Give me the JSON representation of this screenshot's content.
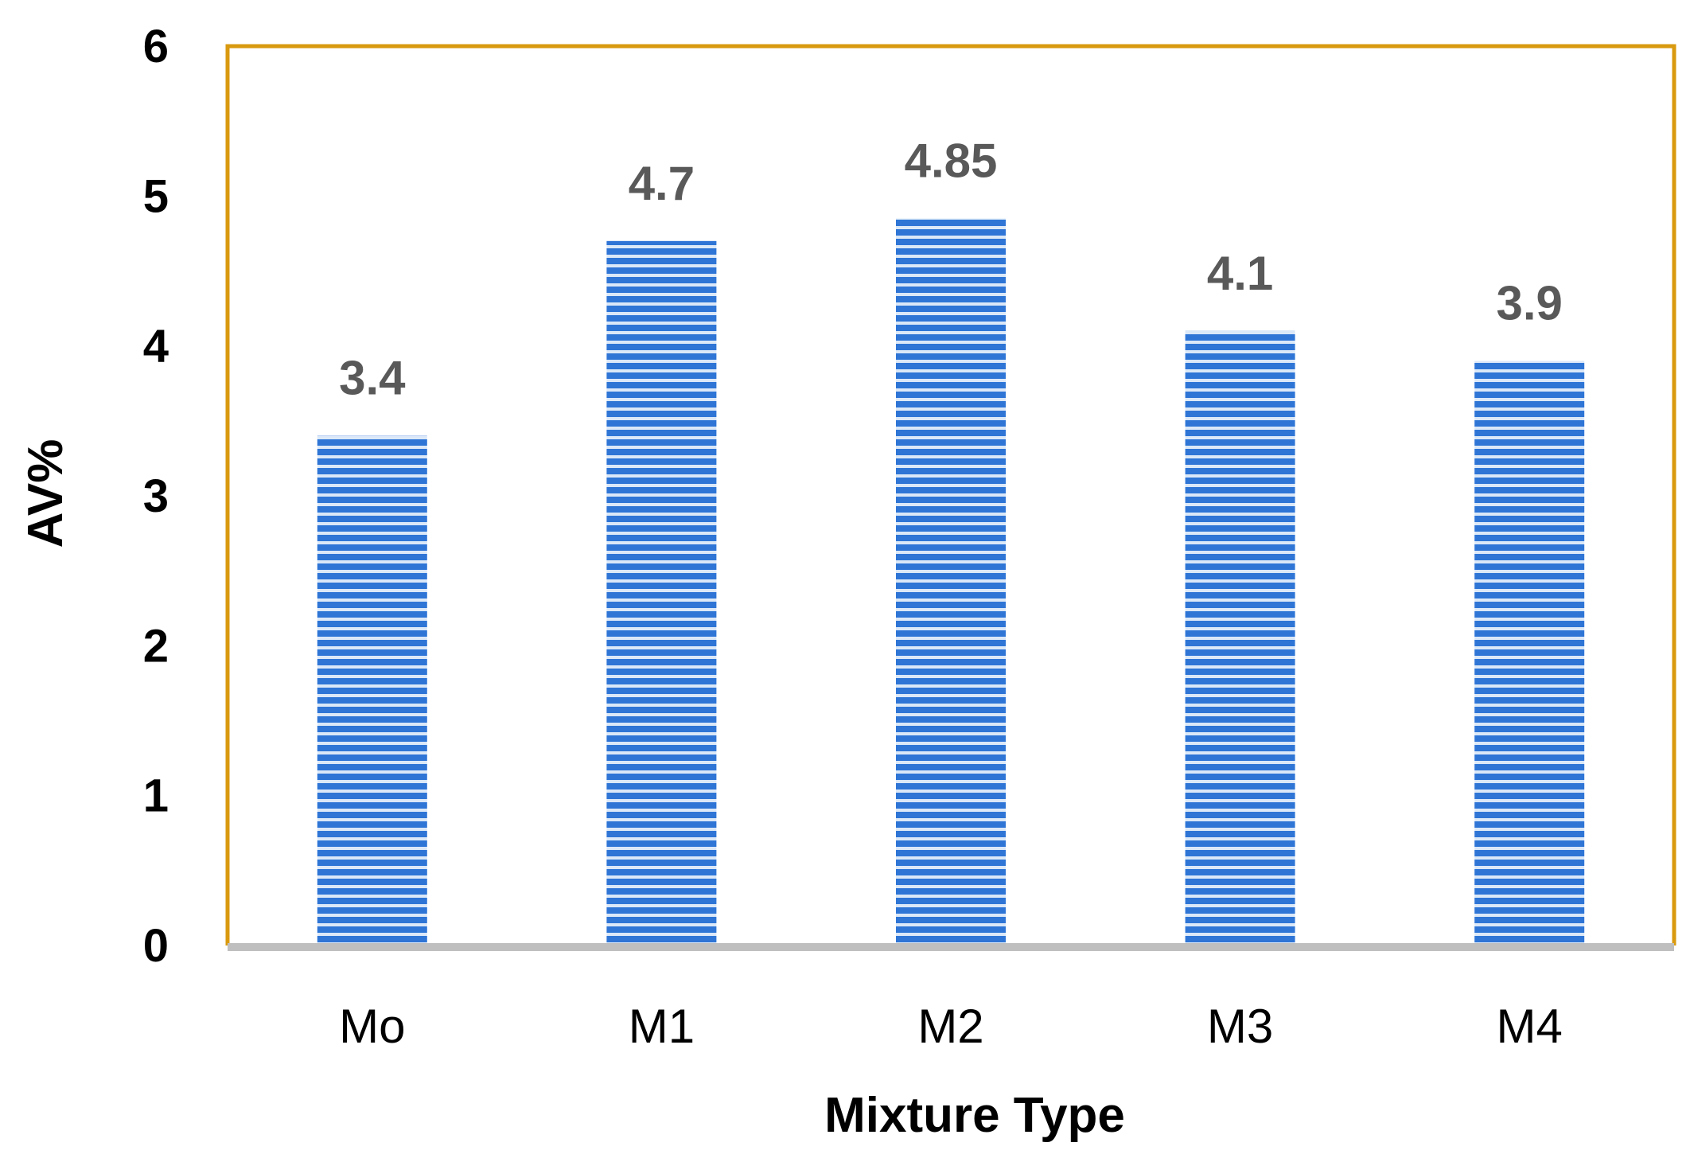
{
  "chart_data": {
    "type": "bar",
    "title": "",
    "xlabel": "Mixture Type",
    "ylabel": "AV%",
    "categories": [
      "Mo",
      "M1",
      "M2",
      "M3",
      "M4"
    ],
    "values": [
      3.4,
      4.7,
      4.85,
      4.1,
      3.9
    ],
    "data_labels": [
      "3.4",
      "4.7",
      "4.85",
      "4.1",
      "3.9"
    ],
    "ylim": [
      0,
      6
    ],
    "yticks": [
      0,
      1,
      2,
      3,
      4,
      5,
      6
    ],
    "grid": false,
    "legend": "none",
    "colors": {
      "bar": "#2e75d6",
      "bar_stripe": "#dbe8f8",
      "plot_border": "#d99a10",
      "x_axis_line": "#bfbfbf",
      "data_label": "#595959"
    }
  }
}
